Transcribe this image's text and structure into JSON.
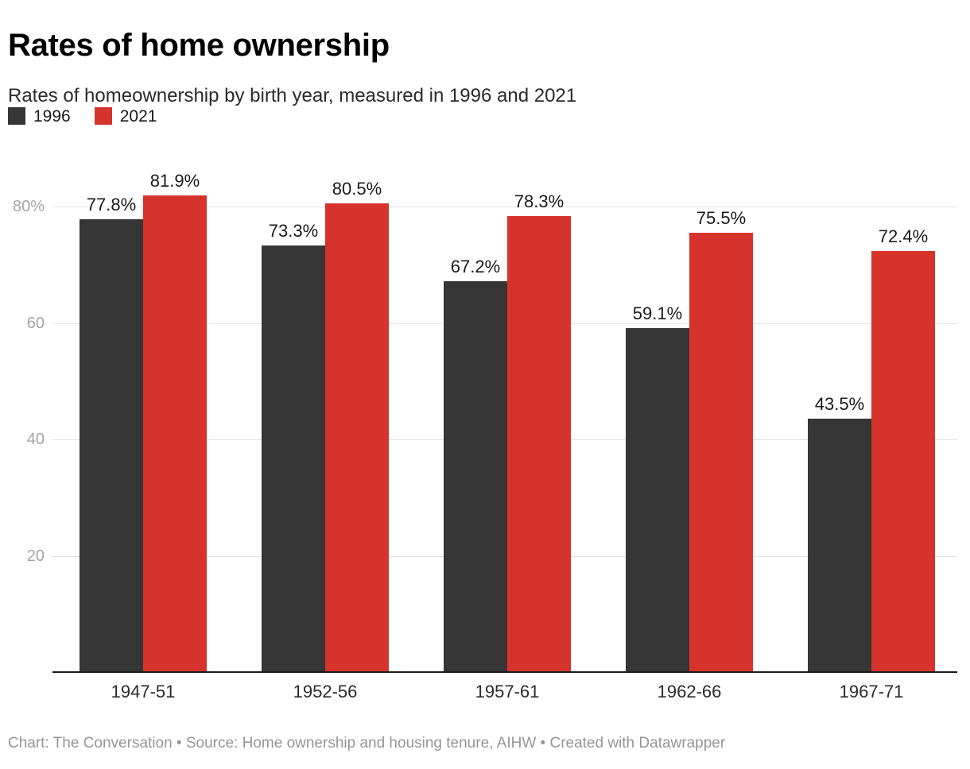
{
  "header": {
    "title": "Rates of home ownership",
    "subtitle": "Rates of homeownership by birth year, measured in 1996 and 2021"
  },
  "legend": {
    "items": [
      {
        "label": "1996",
        "color": "#363636"
      },
      {
        "label": "2021",
        "color": "#d5332c"
      }
    ]
  },
  "footer": {
    "text": "Chart: The Conversation • Source: Home ownership and housing tenure, AIHW • Created with Datawrapper"
  },
  "chart_data": {
    "type": "bar",
    "title": "Rates of home ownership",
    "subtitle": "Rates of homeownership by birth year, measured in 1996 and 2021",
    "categories": [
      "1947-51",
      "1952-56",
      "1957-61",
      "1962-66",
      "1967-71"
    ],
    "series": [
      {
        "name": "1996",
        "color": "#363636",
        "values": [
          77.8,
          73.3,
          67.2,
          59.1,
          43.5
        ]
      },
      {
        "name": "2021",
        "color": "#d5332c",
        "values": [
          81.9,
          80.5,
          78.3,
          75.5,
          72.4
        ]
      }
    ],
    "value_label_suffix": "%",
    "yticks": [
      20,
      40,
      60,
      80
    ],
    "ytick_labels": [
      "20",
      "40",
      "60",
      "80%"
    ],
    "ylim": [
      0,
      88
    ],
    "xlabel": "",
    "ylabel": "",
    "grid": "horizontal",
    "legend_position": "top-left",
    "colors": {
      "grid": "#e3e3e3",
      "axis_line": "#1a1a1a",
      "tick_text": "#a5a5a5",
      "value_text": "#1a1a1a",
      "xlabel_text": "#2b2b2b",
      "footer_text": "#969696"
    }
  }
}
